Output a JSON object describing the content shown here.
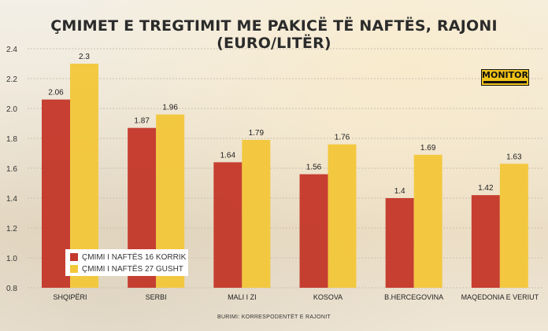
{
  "title": "ÇMIMET E TREGTIMIT ME PAKICË TË NAFTËS, RAJONI (EURO/LITËR)",
  "logo": "MONITOR",
  "source": "BURIMI: KORRESPODENTËT E RAJONIT",
  "colors": {
    "series1": "#c4382b",
    "series2": "#f2c73a",
    "grid": "#c9c0b0"
  },
  "chart_data": {
    "type": "bar",
    "categories": [
      "SHQIPËRI",
      "SERBI",
      "MALI I ZI",
      "KOSOVA",
      "B.HERCEGOVINA",
      "MAQEDONIA E VERIUT"
    ],
    "series": [
      {
        "name": "ÇMIMI I NAFTËS 16 KORRIK",
        "values": [
          2.06,
          1.87,
          1.64,
          1.56,
          1.4,
          1.42
        ]
      },
      {
        "name": "ÇMIMI I NAFTËS 27 GUSHT",
        "values": [
          2.3,
          1.96,
          1.79,
          1.76,
          1.69,
          1.63
        ]
      }
    ],
    "data_labels": [
      [
        "2.06",
        "1.87",
        "1.64",
        "1.56",
        "1.4",
        "1.42"
      ],
      [
        "2.3",
        "1.96",
        "1.79",
        "1.76",
        "1.69",
        "1.63"
      ]
    ],
    "ylim": [
      0.8,
      2.4
    ],
    "yticks": [
      "2.4",
      "2.2",
      "2.0",
      "1.8",
      "1.6",
      "1.4",
      "1.2",
      "1.0",
      "0.8"
    ],
    "grid": true,
    "legend_position": "bottom-left"
  }
}
